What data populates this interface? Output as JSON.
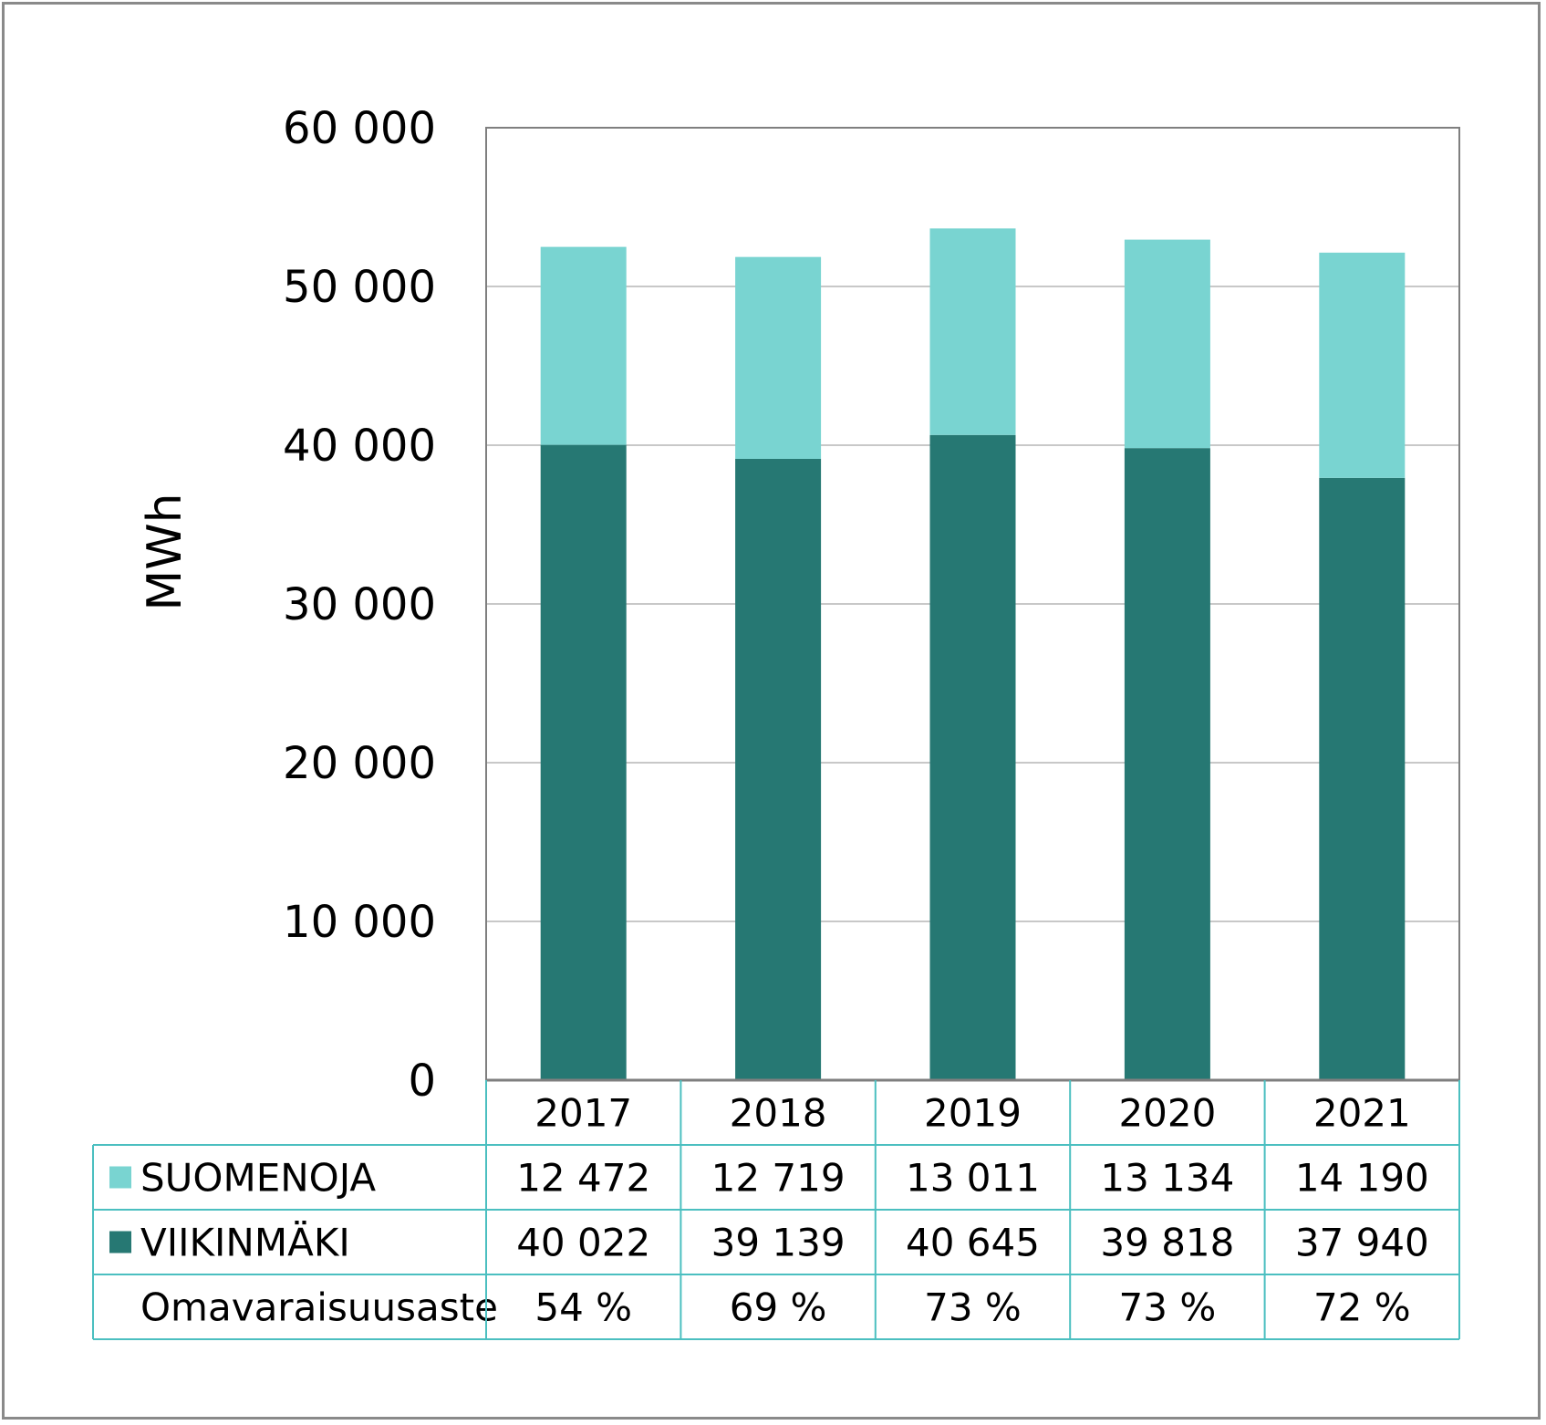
{
  "chart_data": {
    "type": "bar",
    "stacked": true,
    "categories": [
      "2017",
      "2018",
      "2019",
      "2020",
      "2021"
    ],
    "series": [
      {
        "name": "VIIKINMÄKI",
        "values": [
          40022,
          39139,
          40645,
          39818,
          37940
        ],
        "display": [
          "40 022",
          "39 139",
          "40 645",
          "39 818",
          "37 940"
        ],
        "color": "#267873"
      },
      {
        "name": "SUOMENOJA",
        "values": [
          12472,
          12719,
          13011,
          13134,
          14190
        ],
        "display": [
          "12 472",
          "12 719",
          "13 011",
          "13 134",
          "14 190"
        ],
        "color": "#79d4d1"
      }
    ],
    "extra_row": {
      "name": "Omavaraisuusaste",
      "values": [
        "54 %",
        "69 %",
        "73 %",
        "73 %",
        "72 %"
      ]
    },
    "ylabel": "MWh",
    "ylim": [
      0,
      60000
    ],
    "yticks": [
      0,
      10000,
      20000,
      30000,
      40000,
      50000,
      60000
    ],
    "ytick_labels": [
      "0",
      "10 000",
      "20 000",
      "30 000",
      "40 000",
      "50 000",
      "60 000"
    ],
    "grid": true,
    "legend": "data-table"
  },
  "colors": {
    "grid": "#c8c8c8",
    "axis": "#7f7f7f",
    "table_border": "#4bbfc0"
  }
}
